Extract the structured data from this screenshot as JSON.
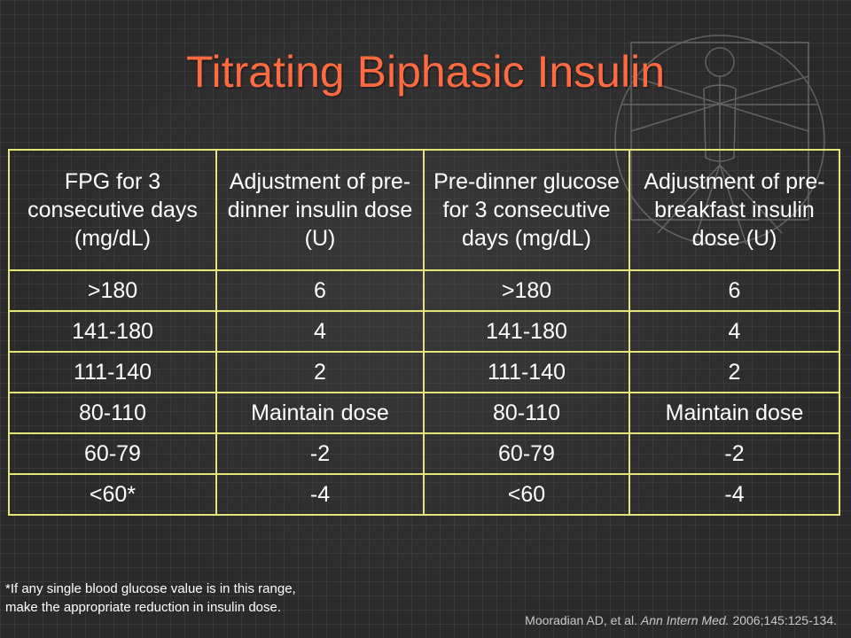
{
  "slide": {
    "title": "Titrating Biphasic Insulin"
  },
  "table": {
    "headers": [
      "FPG for 3 consecutive days (mg/dL)",
      "Adjustment of pre-dinner insulin dose (U)",
      "Pre-dinner glucose for 3 consecutive days (mg/dL)",
      "Adjustment of pre-breakfast insulin dose (U)"
    ],
    "rows": [
      [
        ">180",
        "6",
        ">180",
        "6"
      ],
      [
        "141-180",
        "4",
        "141-180",
        "4"
      ],
      [
        "111-140",
        "2",
        "111-140",
        "2"
      ],
      [
        "80-110",
        "Maintain dose",
        "80-110",
        "Maintain dose"
      ],
      [
        "60-79",
        "-2",
        "60-79",
        "-2"
      ],
      [
        "<60*",
        "-4",
        "<60",
        "-4"
      ]
    ]
  },
  "footnote": {
    "line1": "*If any single blood glucose value is in this range,",
    "line2": "make the appropriate reduction in insulin dose."
  },
  "citation": {
    "authors": "Mooradian AD, et al.",
    "journal": "Ann Intern Med.",
    "details": "2006;145:125-134."
  },
  "colors": {
    "title": "#ff6a40",
    "table_border": "#e4e47a",
    "text": "#ffffff",
    "background": "#2a2a2a"
  },
  "decoration": {
    "background_art": "vitruvian-man-sketch"
  }
}
